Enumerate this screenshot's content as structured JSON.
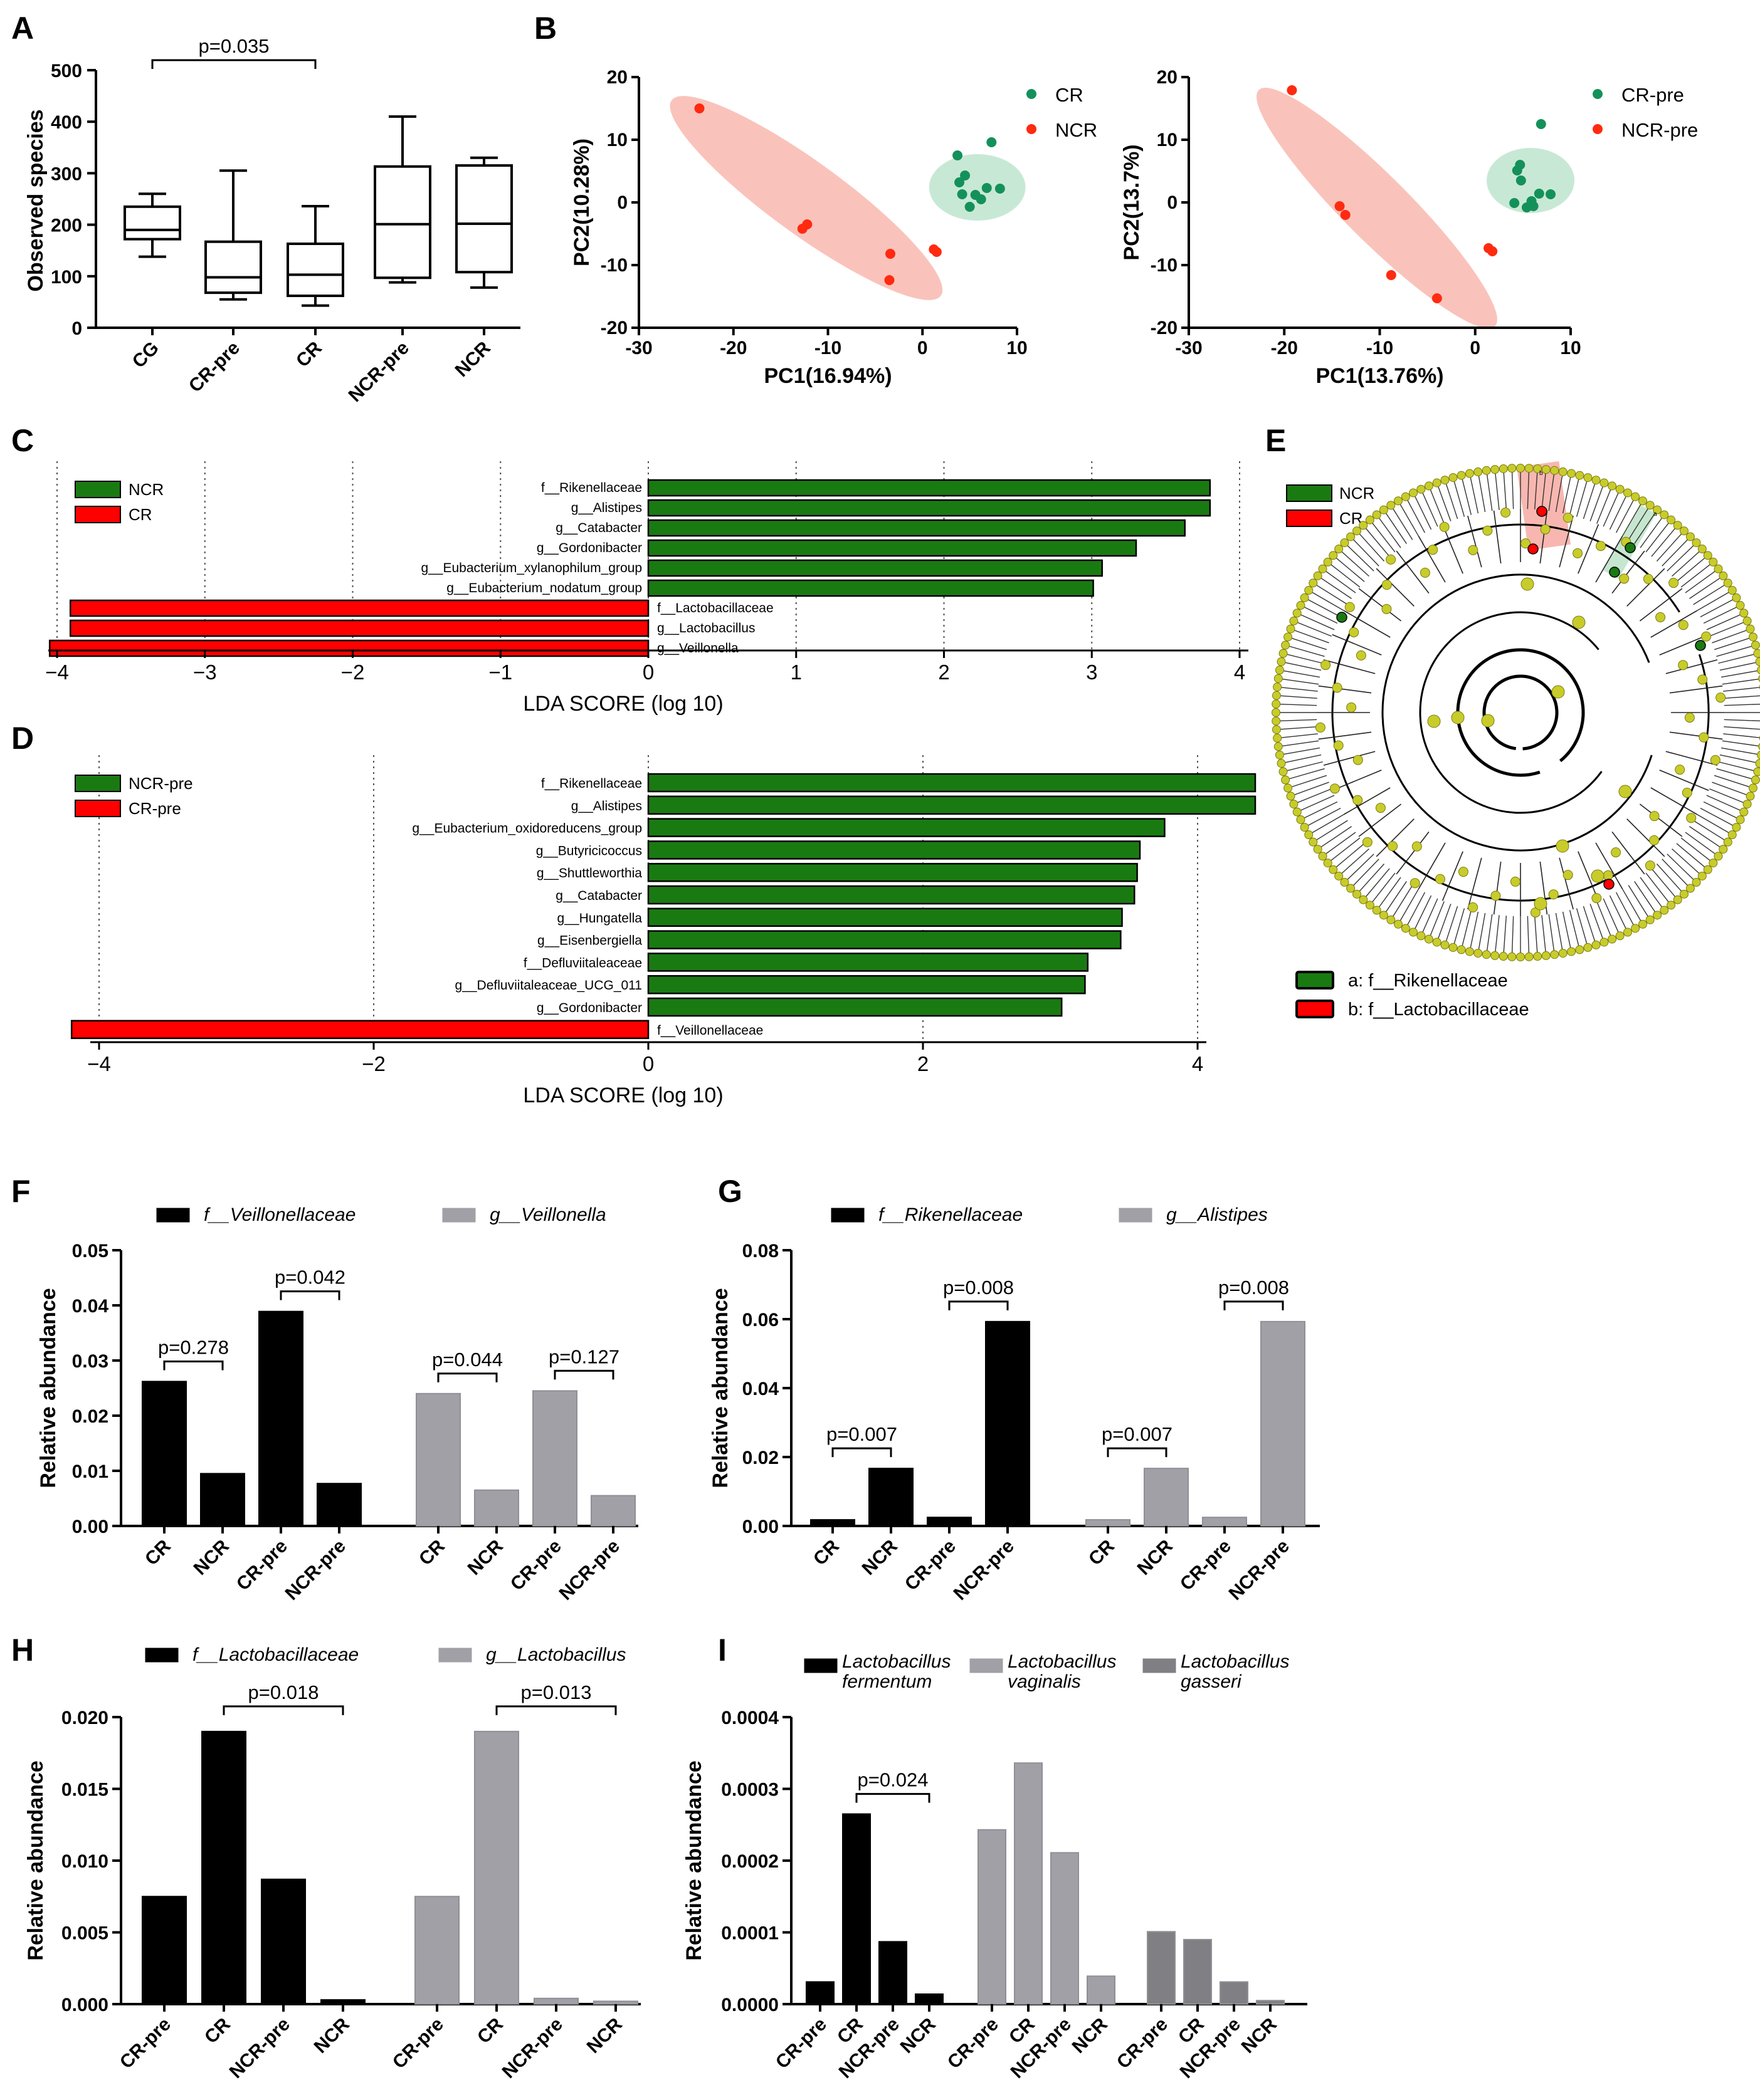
{
  "panel_labels": [
    "A",
    "B",
    "C",
    "D",
    "E",
    "F",
    "G",
    "H",
    "I"
  ],
  "colors": {
    "green": "#1a7a12",
    "red": "#ff0000",
    "black": "#000000",
    "gray": "#a0a0a6",
    "dgray": "#808084",
    "pink": "#f9c3bb",
    "mint": "#c8e8d6",
    "dotgreen": "#14915a",
    "dotred": "#ff2a10",
    "node": "#c8cc2a"
  },
  "chart_data": [
    {
      "id": "A",
      "type": "box",
      "ylabel": "Observed species",
      "ylim": [
        0,
        500
      ],
      "yticks": [
        0,
        100,
        200,
        300,
        400,
        500
      ],
      "categories": [
        "CG",
        "CR-pre",
        "CR",
        "NCR-pre",
        "NCR"
      ],
      "boxes": [
        {
          "min": 138,
          "q1": 172,
          "median": 190,
          "q3": 235,
          "max": 260
        },
        {
          "min": 55,
          "q1": 68,
          "median": 98,
          "q3": 167,
          "max": 305
        },
        {
          "min": 43,
          "q1": 62,
          "median": 103,
          "q3": 163,
          "max": 236
        },
        {
          "min": 88,
          "q1": 97,
          "median": 201,
          "q3": 313,
          "max": 410
        },
        {
          "min": 78,
          "q1": 108,
          "median": 202,
          "q3": 315,
          "max": 330
        }
      ],
      "annotations": [
        {
          "from": "CG",
          "to": "CR",
          "text": "p=0.035"
        }
      ]
    },
    {
      "id": "B1",
      "type": "scatter",
      "xlabel": "PC1(16.94%)",
      "ylabel": "PC2(10.28%)",
      "xlim": [
        -30,
        10
      ],
      "ylim": [
        -20,
        20
      ],
      "xticks": [
        -30,
        -20,
        -10,
        0,
        10
      ],
      "yticks": [
        -20,
        -10,
        0,
        10,
        20
      ],
      "series": [
        {
          "name": "CR",
          "color": "#14915a",
          "points": [
            [
              3.7,
              7.5
            ],
            [
              7.3,
              9.6
            ],
            [
              4.5,
              4.3
            ],
            [
              3.9,
              3.2
            ],
            [
              6.8,
              2.3
            ],
            [
              8.2,
              2.2
            ],
            [
              4.2,
              1.3
            ],
            [
              5.6,
              1.2
            ],
            [
              6.2,
              0.5
            ],
            [
              5.0,
              -0.7
            ]
          ]
        },
        {
          "name": "NCR",
          "color": "#ff2a10",
          "points": [
            [
              -23.6,
              15.0
            ],
            [
              -12.7,
              -4.2
            ],
            [
              -12.2,
              -3.5
            ],
            [
              -3.4,
              -8.2
            ],
            [
              1.2,
              -7.5
            ],
            [
              1.5,
              -7.9
            ],
            [
              -3.5,
              -12.4
            ]
          ]
        }
      ]
    },
    {
      "id": "B2",
      "type": "scatter",
      "xlabel": "PC1(13.76%)",
      "ylabel": "PC2(13.7%)",
      "xlim": [
        -30,
        10
      ],
      "ylim": [
        -20,
        20
      ],
      "xticks": [
        -30,
        -20,
        -10,
        0,
        10
      ],
      "yticks": [
        -20,
        -10,
        0,
        10,
        20
      ],
      "series": [
        {
          "name": "CR-pre",
          "color": "#14915a",
          "points": [
            [
              6.9,
              12.5
            ],
            [
              4.7,
              6.0
            ],
            [
              4.4,
              5.1
            ],
            [
              4.8,
              3.5
            ],
            [
              6.7,
              1.4
            ],
            [
              7.9,
              1.3
            ],
            [
              5.9,
              0.2
            ],
            [
              4.1,
              -0.1
            ],
            [
              6.1,
              -0.6
            ],
            [
              5.4,
              -0.8
            ]
          ]
        },
        {
          "name": "NCR-pre",
          "color": "#ff2a10",
          "points": [
            [
              -19.2,
              17.9
            ],
            [
              -14.2,
              -0.6
            ],
            [
              -13.6,
              -2.0
            ],
            [
              -8.8,
              -11.6
            ],
            [
              1.4,
              -7.3
            ],
            [
              1.8,
              -7.8
            ],
            [
              -4.0,
              -15.3
            ]
          ]
        }
      ]
    },
    {
      "id": "C",
      "type": "bar",
      "orientation": "horizontal",
      "xlabel": "LDA SCORE (log 10)",
      "xlim": [
        -4,
        4
      ],
      "xticks": [
        -4,
        -3,
        -2,
        -1,
        0,
        1,
        2,
        3,
        4
      ],
      "legend": [
        {
          "name": "NCR",
          "color": "#1a7a12"
        },
        {
          "name": "CR",
          "color": "#ff0000"
        }
      ],
      "categories": [
        "f__Rikenellaceae",
        "g__Alistipes",
        "g__Catabacter",
        "g__Gordonibacter",
        "g__Eubacterium_xylanophilum_group",
        "g__Eubacterium_nodatum_group",
        "f__Lactobacillaceae",
        "g__Lactobacillus",
        "g__Veillonella"
      ],
      "values": [
        3.8,
        3.8,
        3.63,
        3.3,
        3.07,
        3.01,
        -3.91,
        -3.91,
        -4.05
      ]
    },
    {
      "id": "D",
      "type": "bar",
      "orientation": "horizontal",
      "xlabel": "LDA SCORE (log 10)",
      "xlim": [
        -4,
        4
      ],
      "xticks": [
        -4,
        -2,
        0,
        2,
        4
      ],
      "legend": [
        {
          "name": "NCR-pre",
          "color": "#1a7a12"
        },
        {
          "name": "CR-pre",
          "color": "#ff0000"
        }
      ],
      "categories": [
        "f__Rikenellaceae",
        "g__Alistipes",
        "g__Eubacterium_oxidoreducens_group",
        "g__Butyricicoccus",
        "g__Shuttleworthia",
        "g__Catabacter",
        "g__Hungatella",
        "g__Eisenbergiella",
        "f__Defluviitaleaceae",
        "g__Defluviitaleaceae_UCG_011",
        "g__Gordonibacter",
        "f__Veillonellaceae"
      ],
      "values": [
        4.42,
        4.42,
        3.76,
        3.58,
        3.56,
        3.54,
        3.45,
        3.44,
        3.2,
        3.18,
        3.01,
        -4.2
      ]
    },
    {
      "id": "E",
      "type": "cladogram",
      "legend": [
        {
          "name": "NCR",
          "color": "#1a7a12"
        },
        {
          "name": "CR",
          "color": "#ff0000"
        }
      ],
      "markers": [
        "a: f__Rikenellaceae",
        "b: f__Lactobacillaceae"
      ],
      "node_markers": [
        "a",
        "b"
      ]
    },
    {
      "id": "F",
      "type": "bar",
      "ylabel": "Relative abundance",
      "ylim": [
        0,
        0.05
      ],
      "yticks": [
        "0.00",
        "0.01",
        "0.02",
        "0.03",
        "0.04",
        "0.05"
      ],
      "groups": [
        {
          "name": "f__Veillonellaceae",
          "color": "#000000",
          "categories": [
            "CR",
            "NCR",
            "CR-pre",
            "NCR-pre"
          ],
          "values": [
            0.0262,
            0.0095,
            0.0389,
            0.0077
          ]
        },
        {
          "name": "g__Veillonella",
          "color": "#a0a0a6",
          "categories": [
            "CR",
            "NCR",
            "CR-pre",
            "NCR-pre"
          ],
          "values": [
            0.024,
            0.0065,
            0.0245,
            0.0055
          ]
        }
      ],
      "annotations": [
        {
          "group": 0,
          "from": 0,
          "to": 1,
          "text": "p=0.278"
        },
        {
          "group": 0,
          "from": 2,
          "to": 3,
          "text": "p=0.042"
        },
        {
          "group": 1,
          "from": 0,
          "to": 1,
          "text": "p=0.044"
        },
        {
          "group": 1,
          "from": 2,
          "to": 3,
          "text": "p=0.127"
        }
      ]
    },
    {
      "id": "G",
      "type": "bar",
      "ylabel": "Relative abundance",
      "ylim": [
        0,
        0.08
      ],
      "yticks": [
        "0.00",
        "0.02",
        "0.04",
        "0.06",
        "0.08"
      ],
      "groups": [
        {
          "name": "f__Rikenellaceae",
          "color": "#000000",
          "categories": [
            "CR",
            "NCR",
            "CR-pre",
            "NCR-pre"
          ],
          "values": [
            0.0018,
            0.0167,
            0.0025,
            0.0593
          ]
        },
        {
          "name": "g__Alistipes",
          "color": "#a0a0a6",
          "categories": [
            "CR",
            "NCR",
            "CR-pre",
            "NCR-pre"
          ],
          "values": [
            0.0018,
            0.0167,
            0.0025,
            0.0593
          ]
        }
      ],
      "annotations": [
        {
          "group": 0,
          "from": 0,
          "to": 1,
          "text": "p=0.007"
        },
        {
          "group": 0,
          "from": 2,
          "to": 3,
          "text": "p=0.008"
        },
        {
          "group": 1,
          "from": 0,
          "to": 1,
          "text": "p=0.007"
        },
        {
          "group": 1,
          "from": 2,
          "to": 3,
          "text": "p=0.008"
        }
      ]
    },
    {
      "id": "H",
      "type": "bar",
      "ylabel": "Relative abundance",
      "ylim": [
        0,
        0.02
      ],
      "yticks": [
        "0.000",
        "0.005",
        "0.010",
        "0.015",
        "0.020"
      ],
      "groups": [
        {
          "name": "f__Lactobacillaceae",
          "color": "#000000",
          "categories": [
            "CR-pre",
            "CR",
            "NCR-pre",
            "NCR"
          ],
          "values": [
            0.0075,
            0.019,
            0.0087,
            0.0003
          ]
        },
        {
          "name": "g__Lactobacillus",
          "color": "#a0a0a6",
          "categories": [
            "CR-pre",
            "CR",
            "NCR-pre",
            "NCR"
          ],
          "values": [
            0.0075,
            0.019,
            0.0004,
            0.0002
          ]
        }
      ],
      "annotations": [
        {
          "group": 0,
          "from": 1,
          "to": 3,
          "text": "p=0.018"
        },
        {
          "group": 1,
          "from": 1,
          "to": 3,
          "text": "p=0.013"
        }
      ]
    },
    {
      "id": "I",
      "type": "bar",
      "ylabel": "Relative abundance",
      "ylim": [
        0,
        0.0004
      ],
      "yticks": [
        "0.0000",
        "0.0001",
        "0.0002",
        "0.0003",
        "0.0004"
      ],
      "groups": [
        {
          "name": "Lactobacillus fermentum",
          "color": "#000000",
          "categories": [
            "CR-pre",
            "CR",
            "NCR-pre",
            "NCR"
          ],
          "values": [
            3.1e-05,
            0.000265,
            8.7e-05,
            1.4e-05
          ]
        },
        {
          "name": "Lactobacillus vaginalis",
          "color": "#a0a0a6",
          "categories": [
            "CR-pre",
            "CR",
            "NCR-pre",
            "NCR"
          ],
          "values": [
            0.000243,
            0.000336,
            0.000211,
            3.9e-05
          ]
        },
        {
          "name": "Lactobacillus gasseri",
          "color": "#808084",
          "categories": [
            "CR-pre",
            "CR",
            "NCR-pre",
            "NCR"
          ],
          "values": [
            0.000101,
            9e-05,
            3.1e-05,
            5e-06
          ]
        }
      ],
      "annotations": [
        {
          "group": 0,
          "from": 1,
          "to": 3,
          "text": "p=0.024"
        }
      ]
    }
  ]
}
